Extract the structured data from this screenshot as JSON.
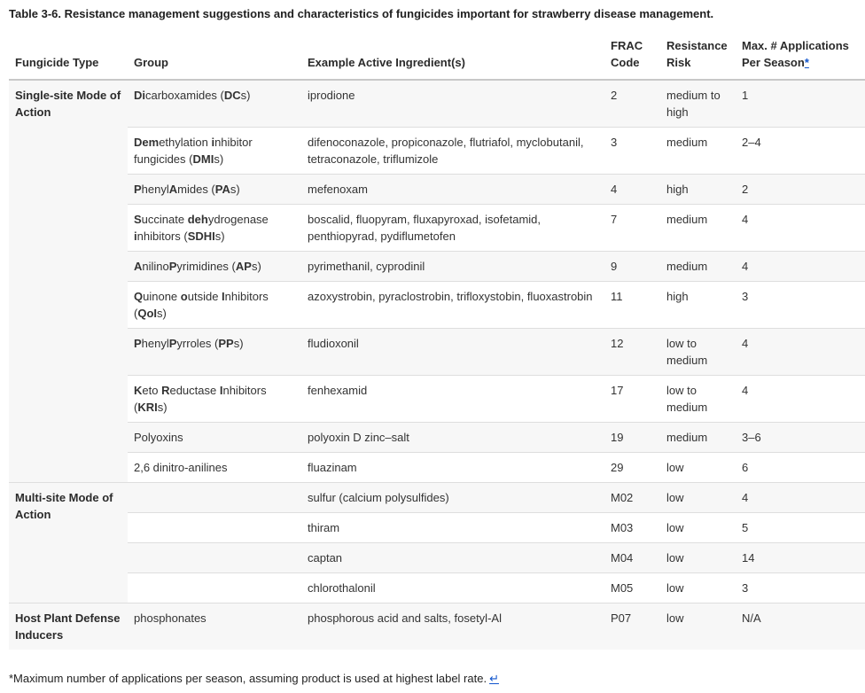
{
  "title": "Table 3-6. Resistance management suggestions and characteristics of fungicides important for strawberry disease management.",
  "table": {
    "headers": {
      "fungicide_type": "Fungicide Type",
      "group": "Group",
      "ingredients": "Example Active Ingredient(s)",
      "frac_code": "FRAC Code",
      "resistance_risk": "Resistance Risk",
      "max_applications": "Max. # Applications Per Season",
      "footnote_marker": "*"
    },
    "rows": [
      {
        "type": "Single-site Mode of Action",
        "group_html": "<b>Di</b>carboxamides (<b>DC</b>s)",
        "ingredients": "iprodione",
        "frac": "2",
        "risk": "medium to high",
        "max": "1"
      },
      {
        "group_html": "<b>Dem</b>ethylation <b>i</b>nhibitor fungicides (<b>DMI</b>s)",
        "ingredients": "difenoconazole, propiconazole, flutriafol, myclobutanil, tetraconazole, triflumizole",
        "frac": "3",
        "risk": "medium",
        "max": "2–4"
      },
      {
        "group_html": "<b>P</b>henyl<b>A</b>mides (<b>PA</b>s)",
        "ingredients": "mefenoxam",
        "frac": "4",
        "risk": "high",
        "max": "2"
      },
      {
        "group_html": "<b>S</b>uccinate <b>deh</b>ydrogenase <b>i</b>nhibitors (<b>SDHI</b>s)",
        "ingredients": "boscalid, fluopyram, fluxapyroxad, isofetamid, penthiopyrad, pydiflumetofen",
        "frac": "7",
        "risk": "medium",
        "max": "4"
      },
      {
        "group_html": "<b>A</b>nilino<b>P</b>yrimidines (<b>AP</b>s)",
        "ingredients": "pyrimethanil, cyprodinil",
        "frac": "9",
        "risk": "medium",
        "max": "4"
      },
      {
        "group_html": "<b>Q</b>uinone <b>o</b>utside <b>I</b>nhibitors (<b>QoI</b>s)",
        "ingredients": "azoxystrobin, pyraclostrobin, trifloxystobin, fluoxastrobin",
        "frac": "11",
        "risk": "high",
        "max": "3"
      },
      {
        "group_html": "<b>P</b>henyl<b>P</b>yrroles (<b>PP</b>s)",
        "ingredients": "fludioxonil",
        "frac": "12",
        "risk": "low to medium",
        "max": "4"
      },
      {
        "group_html": "<b>K</b>eto <b>R</b>eductase <b>I</b>nhibitors (<b>KRI</b>s)",
        "ingredients": "fenhexamid",
        "frac": "17",
        "risk": "low to medium",
        "max": "4"
      },
      {
        "group_html": "Polyoxins",
        "ingredients": "polyoxin D zinc–salt",
        "frac": "19",
        "risk": "medium",
        "max": "3–6"
      },
      {
        "group_html": "2,6 dinitro-anilines",
        "ingredients": "fluazinam",
        "frac": "29",
        "risk": "low",
        "max": "6"
      },
      {
        "type": "Multi-site Mode of Action",
        "group_html": "",
        "ingredients": "sulfur (calcium polysulfides)",
        "frac": "M02",
        "risk": "low",
        "max": "4"
      },
      {
        "group_html": "",
        "ingredients": "thiram",
        "frac": "M03",
        "risk": "low",
        "max": "5"
      },
      {
        "group_html": "",
        "ingredients": "captan",
        "frac": "M04",
        "risk": "low",
        "max": "14"
      },
      {
        "group_html": "",
        "ingredients": "chlorothalonil",
        "frac": "M05",
        "risk": "low",
        "max": "3"
      },
      {
        "type": "Host Plant Defense Inducers",
        "group_html": "phosphonates",
        "ingredients": "phosphorous acid and salts, fosetyl-Al",
        "frac": "P07",
        "risk": "low",
        "max": "N/A"
      }
    ]
  },
  "footnote": {
    "text": "*Maximum number of applications per season, assuming product is used at highest label rate.",
    "return_symbol": "↵"
  },
  "colors": {
    "stripe": "#f7f7f7",
    "row_border": "#dedede",
    "header_border": "#c8c8c8",
    "link_blue": "#1155cc",
    "text": "#333333"
  }
}
